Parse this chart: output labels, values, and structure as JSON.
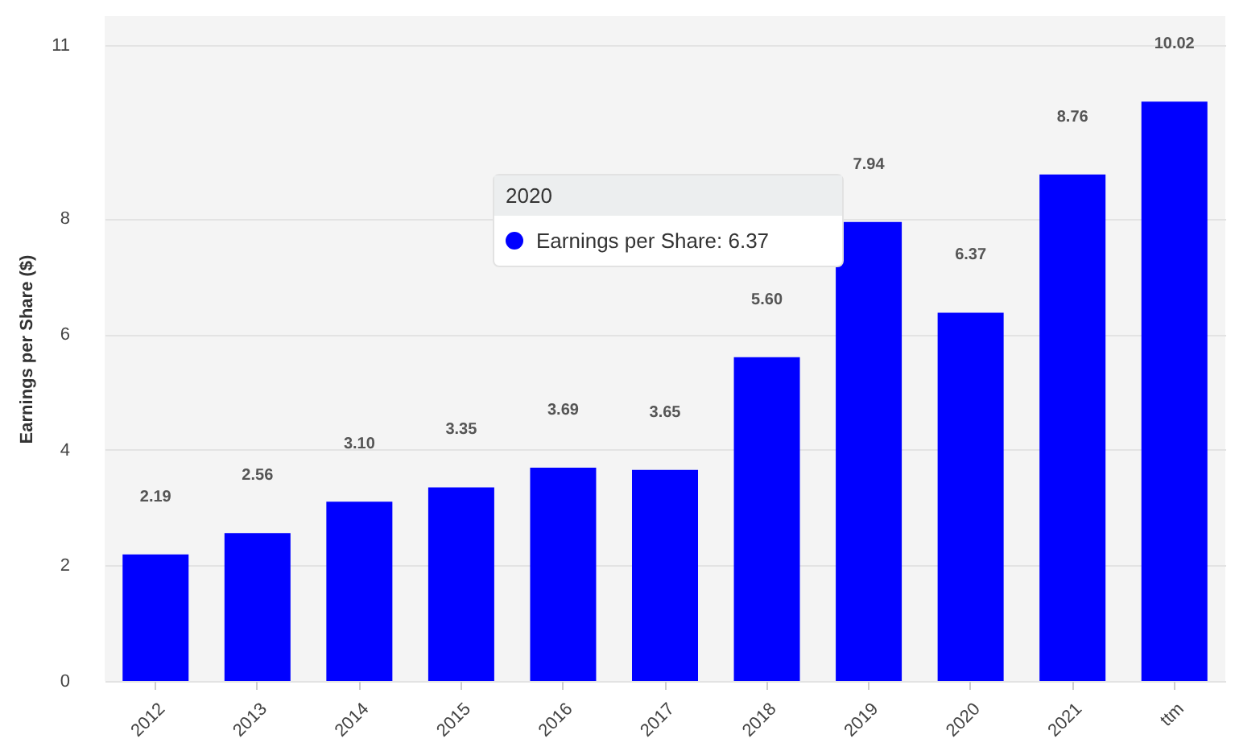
{
  "chart_data": {
    "type": "bar",
    "ylabel": "Earnings per Share ($)",
    "categories": [
      "2012",
      "2013",
      "2014",
      "2015",
      "2016",
      "2017",
      "2018",
      "2019",
      "2020",
      "2021",
      "ttm"
    ],
    "values": [
      2.19,
      2.56,
      3.1,
      3.35,
      3.69,
      3.65,
      5.6,
      7.94,
      6.37,
      8.76,
      10.02
    ],
    "color": "#0000ff",
    "value_labels": [
      "2.19",
      "2.56",
      "3.10",
      "3.35",
      "3.69",
      "3.65",
      "5.60",
      "7.94",
      "6.37",
      "8.76",
      "10.02"
    ],
    "ylim": [
      0,
      11.5
    ],
    "yticks": [
      0,
      2,
      4,
      6,
      8,
      11
    ],
    "grid": "y",
    "annotations": [
      "2020",
      "Earnings per Share: 6.37"
    ]
  }
}
